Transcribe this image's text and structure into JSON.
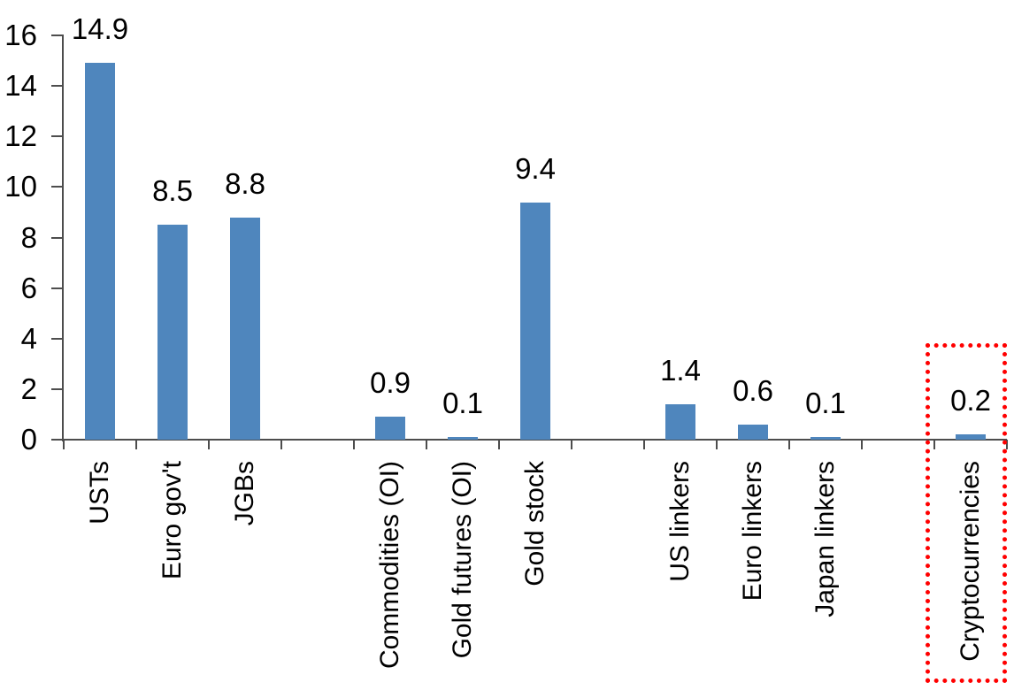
{
  "chart_data": {
    "type": "bar",
    "title": "",
    "xlabel": "",
    "ylabel": "",
    "categories": [
      "USTs",
      "Euro gov't",
      "JGBs",
      "Commodities (OI)",
      "Gold futures (OI)",
      "Gold stock",
      "US linkers",
      "Euro linkers",
      "Japan linkers",
      "Cryptocurrencies"
    ],
    "values": [
      14.9,
      8.5,
      8.8,
      0.9,
      0.1,
      9.4,
      1.4,
      0.6,
      0.1,
      0.2
    ],
    "value_labels": [
      "14.9",
      "8.5",
      "8.8",
      "0.9",
      "0.1",
      "9.4",
      "1.4",
      "0.6",
      "0.1",
      "0.2"
    ],
    "slots": [
      0,
      1,
      2,
      4,
      5,
      6,
      8,
      9,
      10,
      12
    ],
    "total_slots": 13,
    "ylim": [
      0,
      16
    ],
    "yticks": [
      "0",
      "2",
      "4",
      "6",
      "8",
      "10",
      "12",
      "14",
      "16"
    ],
    "ytick_values": [
      0,
      2,
      4,
      6,
      8,
      10,
      12,
      14,
      16
    ],
    "grid": false,
    "legend_position": "none",
    "colors": {
      "bar": "#4F86BD",
      "axis": "#4d4d4d",
      "text": "#000000",
      "highlight_box": "#FF0000",
      "background": "#FFFFFF"
    },
    "highlight": {
      "category": "Cryptocurrencies",
      "shape": "red-dotted-rectangle"
    }
  }
}
